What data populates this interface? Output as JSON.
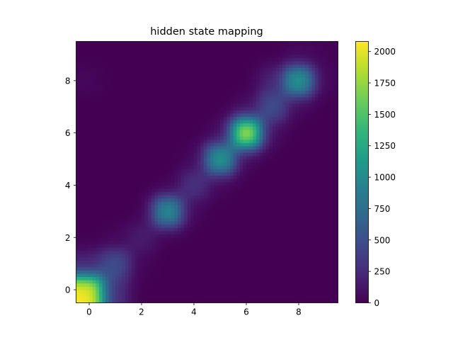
{
  "chart_data": {
    "type": "heatmap",
    "title": "hidden state mapping",
    "xlabel": "",
    "ylabel": "",
    "grid": false,
    "interpolation": "bicubic",
    "colormap": "viridis",
    "x_range": [
      -0.5,
      9.5
    ],
    "y_range": [
      -0.5,
      9.5
    ],
    "x_ticks": [
      0,
      2,
      4,
      6,
      8
    ],
    "y_ticks": [
      0,
      2,
      4,
      6,
      8
    ],
    "colorbar": {
      "range": [
        0,
        2080
      ],
      "ticks": [
        0,
        250,
        500,
        750,
        1000,
        1250,
        1500,
        1750,
        2000
      ]
    },
    "rows": [
      0,
      1,
      2,
      3,
      4,
      5,
      6,
      7,
      8,
      9
    ],
    "cols": [
      0,
      1,
      2,
      3,
      4,
      5,
      6,
      7,
      8,
      9
    ],
    "values": [
      [
        2080,
        280,
        0,
        0,
        0,
        0,
        0,
        0,
        0,
        0
      ],
      [
        200,
        550,
        20,
        0,
        0,
        0,
        0,
        0,
        0,
        0
      ],
      [
        0,
        20,
        180,
        0,
        0,
        0,
        0,
        0,
        0,
        0
      ],
      [
        0,
        0,
        0,
        1150,
        20,
        0,
        0,
        0,
        0,
        0
      ],
      [
        0,
        0,
        0,
        0,
        330,
        20,
        0,
        0,
        0,
        0
      ],
      [
        0,
        0,
        0,
        0,
        30,
        1250,
        20,
        0,
        0,
        0
      ],
      [
        0,
        0,
        0,
        0,
        0,
        40,
        2080,
        50,
        0,
        0
      ],
      [
        0,
        0,
        0,
        0,
        0,
        0,
        50,
        550,
        30,
        0
      ],
      [
        40,
        0,
        0,
        0,
        0,
        0,
        0,
        200,
        1250,
        20
      ],
      [
        0,
        0,
        0,
        0,
        0,
        0,
        0,
        0,
        30,
        20
      ]
    ]
  }
}
